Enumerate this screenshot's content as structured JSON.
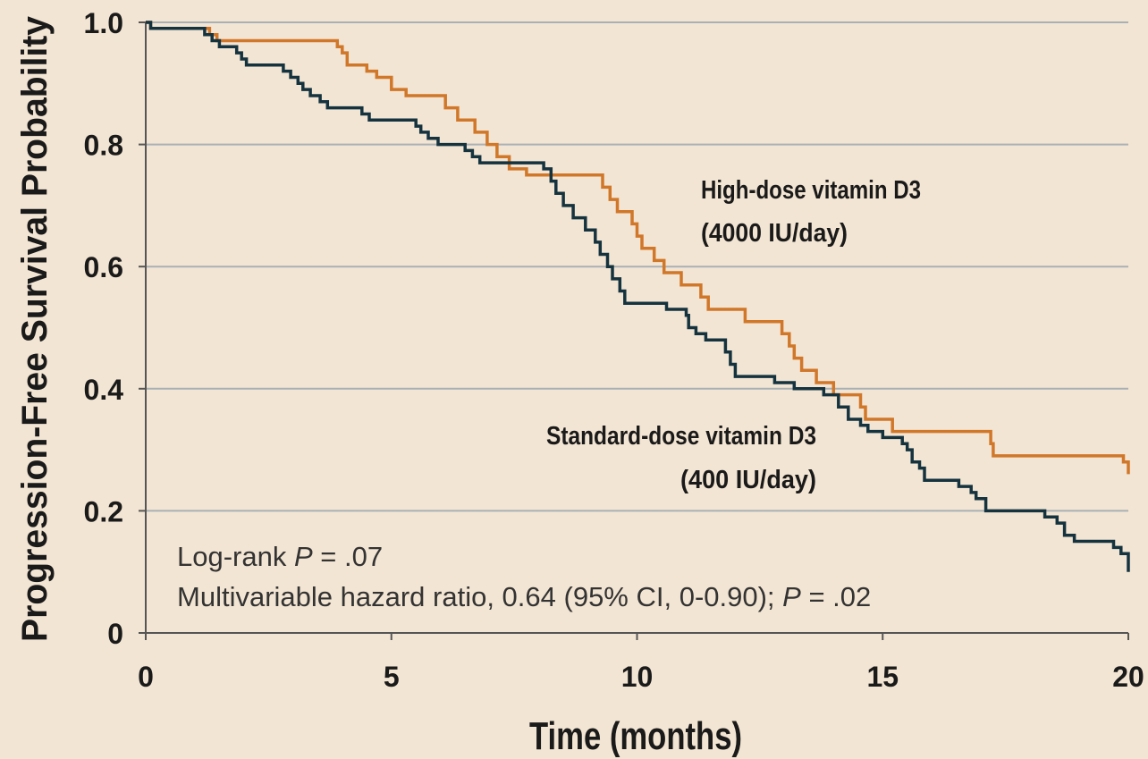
{
  "chart_data": {
    "type": "line",
    "step": true,
    "xlabel": "Time (months)",
    "ylabel": "Progression-Free Survival Probability",
    "xlim": [
      0,
      20
    ],
    "ylim": [
      0,
      1.0
    ],
    "x_ticks": [
      "0",
      "5",
      "10",
      "15",
      "20"
    ],
    "y_ticks": [
      "0",
      "0.2",
      "0.4",
      "0.6",
      "0.8",
      "1.0"
    ],
    "grid": true,
    "series": [
      {
        "name": "High-dose vitamin D3 (4000 IU/day)",
        "label_line1": "High-dose vitamin D3",
        "label_line2": "(4000 IU/day)",
        "color": "#d0772a",
        "points": [
          [
            0,
            1.0
          ],
          [
            0.1,
            0.99
          ],
          [
            1.3,
            0.98
          ],
          [
            1.45,
            0.97
          ],
          [
            3.9,
            0.96
          ],
          [
            4.0,
            0.95
          ],
          [
            4.1,
            0.93
          ],
          [
            4.5,
            0.92
          ],
          [
            4.7,
            0.91
          ],
          [
            5.0,
            0.89
          ],
          [
            5.3,
            0.88
          ],
          [
            6.1,
            0.86
          ],
          [
            6.35,
            0.84
          ],
          [
            6.7,
            0.82
          ],
          [
            6.95,
            0.8
          ],
          [
            7.15,
            0.78
          ],
          [
            7.4,
            0.76
          ],
          [
            7.75,
            0.75
          ],
          [
            9.3,
            0.73
          ],
          [
            9.45,
            0.71
          ],
          [
            9.6,
            0.69
          ],
          [
            9.9,
            0.67
          ],
          [
            10.0,
            0.65
          ],
          [
            10.1,
            0.63
          ],
          [
            10.35,
            0.61
          ],
          [
            10.55,
            0.59
          ],
          [
            10.9,
            0.57
          ],
          [
            11.3,
            0.55
          ],
          [
            11.45,
            0.53
          ],
          [
            12.2,
            0.51
          ],
          [
            12.95,
            0.49
          ],
          [
            13.1,
            0.47
          ],
          [
            13.2,
            0.45
          ],
          [
            13.35,
            0.43
          ],
          [
            13.65,
            0.41
          ],
          [
            14.0,
            0.39
          ],
          [
            14.55,
            0.37
          ],
          [
            14.65,
            0.35
          ],
          [
            15.2,
            0.33
          ],
          [
            17.2,
            0.31
          ],
          [
            17.25,
            0.29
          ],
          [
            19.9,
            0.28
          ],
          [
            20.0,
            0.26
          ]
        ]
      },
      {
        "name": "Standard-dose vitamin D3 (400 IU/day)",
        "label_line1": "Standard-dose vitamin D3",
        "label_line2": "(400 IU/day)",
        "color": "#15333f",
        "points": [
          [
            0,
            1.0
          ],
          [
            0.1,
            0.99
          ],
          [
            1.2,
            0.98
          ],
          [
            1.35,
            0.97
          ],
          [
            1.5,
            0.96
          ],
          [
            1.85,
            0.95
          ],
          [
            1.95,
            0.94
          ],
          [
            2.05,
            0.93
          ],
          [
            2.8,
            0.92
          ],
          [
            2.95,
            0.91
          ],
          [
            3.1,
            0.9
          ],
          [
            3.2,
            0.89
          ],
          [
            3.35,
            0.88
          ],
          [
            3.55,
            0.87
          ],
          [
            3.7,
            0.86
          ],
          [
            4.4,
            0.85
          ],
          [
            4.55,
            0.84
          ],
          [
            5.5,
            0.83
          ],
          [
            5.6,
            0.82
          ],
          [
            5.75,
            0.81
          ],
          [
            5.95,
            0.8
          ],
          [
            6.5,
            0.79
          ],
          [
            6.65,
            0.78
          ],
          [
            6.8,
            0.77
          ],
          [
            8.1,
            0.76
          ],
          [
            8.25,
            0.74
          ],
          [
            8.35,
            0.72
          ],
          [
            8.5,
            0.7
          ],
          [
            8.7,
            0.68
          ],
          [
            8.95,
            0.66
          ],
          [
            9.15,
            0.64
          ],
          [
            9.25,
            0.62
          ],
          [
            9.4,
            0.6
          ],
          [
            9.5,
            0.58
          ],
          [
            9.65,
            0.56
          ],
          [
            9.75,
            0.54
          ],
          [
            10.6,
            0.53
          ],
          [
            11.0,
            0.52
          ],
          [
            11.05,
            0.5
          ],
          [
            11.2,
            0.49
          ],
          [
            11.4,
            0.48
          ],
          [
            11.8,
            0.46
          ],
          [
            11.9,
            0.44
          ],
          [
            12.0,
            0.42
          ],
          [
            12.8,
            0.41
          ],
          [
            13.2,
            0.4
          ],
          [
            13.8,
            0.39
          ],
          [
            14.1,
            0.37
          ],
          [
            14.3,
            0.35
          ],
          [
            14.55,
            0.34
          ],
          [
            14.7,
            0.33
          ],
          [
            15.0,
            0.32
          ],
          [
            15.4,
            0.31
          ],
          [
            15.5,
            0.3
          ],
          [
            15.6,
            0.28
          ],
          [
            15.75,
            0.27
          ],
          [
            15.85,
            0.25
          ],
          [
            16.55,
            0.24
          ],
          [
            16.8,
            0.23
          ],
          [
            16.9,
            0.22
          ],
          [
            17.1,
            0.2
          ],
          [
            18.3,
            0.19
          ],
          [
            18.55,
            0.18
          ],
          [
            18.7,
            0.16
          ],
          [
            18.9,
            0.15
          ],
          [
            19.7,
            0.14
          ],
          [
            19.85,
            0.13
          ],
          [
            20.0,
            0.1
          ]
        ]
      }
    ],
    "annotations": {
      "logrank_prefix": "Log-rank ",
      "logrank_p": "P",
      "logrank_value": " = .07",
      "hr_text": "Multivariable hazard ratio, 0.64 (95% CI, 0-0.90); ",
      "hr_p": "P",
      "hr_value": " = .02"
    },
    "colors": {
      "background": "#f3e5d3",
      "grid": "#a9b0b5",
      "axis": "#555555"
    }
  }
}
